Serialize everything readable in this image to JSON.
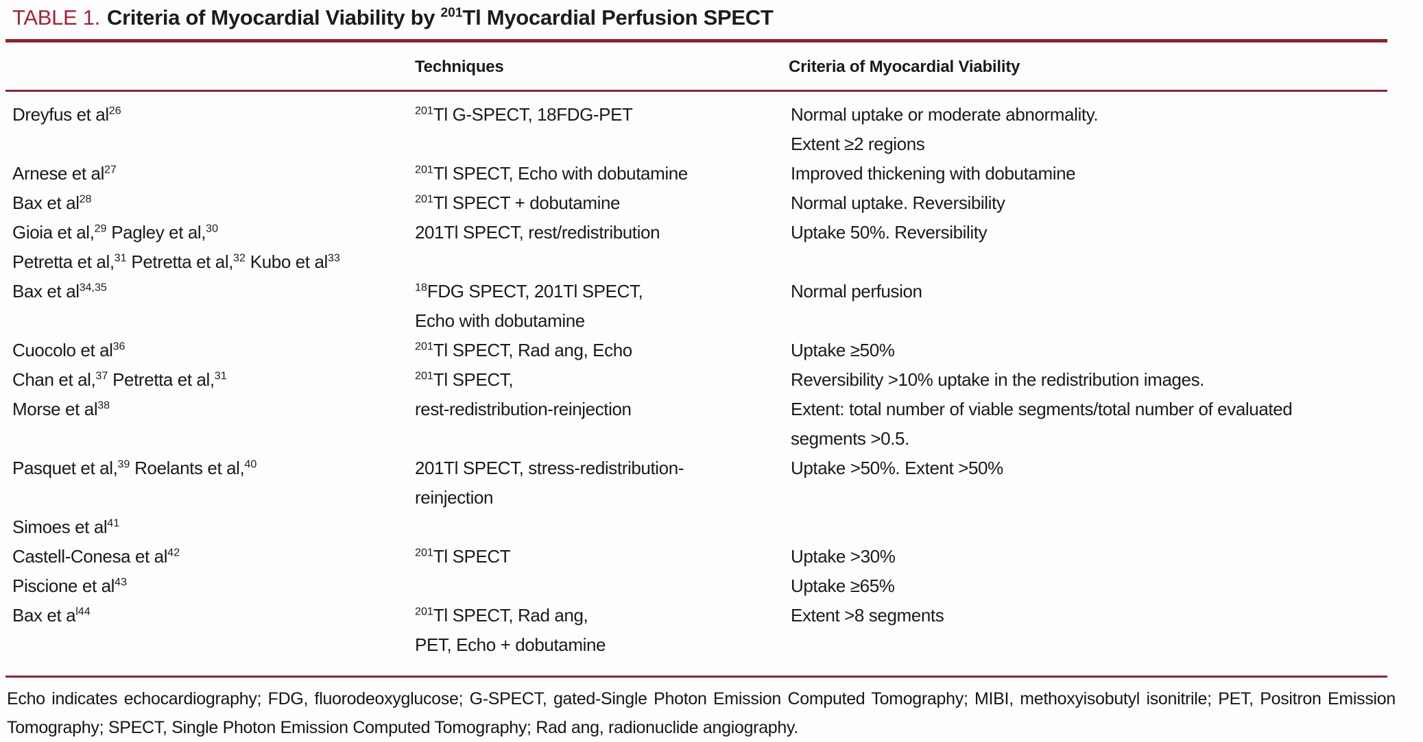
{
  "title": {
    "label": "TABLE 1.",
    "text": "Criteria of Myocardial Viability by ^{201}Tl Myocardial Perfusion SPECT"
  },
  "columns": {
    "techniques": "Techniques",
    "criteria": "Criteria of Myocardial Viability"
  },
  "rows": [
    {
      "authors": [
        "Dreyfus et al^{26}"
      ],
      "techniques": [
        "^{201}Tl G-SPECT, 18FDG-PET"
      ],
      "criteria": [
        "Normal uptake or moderate abnormality.",
        "Extent ≥2 regions"
      ]
    },
    {
      "authors": [
        "Arnese et al^{27}"
      ],
      "techniques": [
        "^{201}Tl SPECT, Echo with dobutamine"
      ],
      "criteria": [
        "Improved thickening with dobutamine"
      ]
    },
    {
      "authors": [
        "Bax et al^{28}"
      ],
      "techniques": [
        "^{201}Tl SPECT + dobutamine"
      ],
      "criteria": [
        "Normal uptake. Reversibility"
      ]
    },
    {
      "authors": [
        "Gioia et al,^{29} Pagley et al,^{30}",
        "Petretta et al,^{31} Petretta et al,^{32} Kubo et al^{33}"
      ],
      "techniques": [
        "201Tl SPECT, rest/redistribution"
      ],
      "criteria": [
        "Uptake 50%. Reversibility"
      ]
    },
    {
      "authors": [
        "Bax et al^{34,35}"
      ],
      "techniques": [
        "^{18}FDG SPECT, 201Tl SPECT,",
        "Echo with dobutamine"
      ],
      "criteria": [
        "Normal perfusion"
      ]
    },
    {
      "authors": [
        "Cuocolo et al^{36}"
      ],
      "techniques": [
        "^{201}Tl SPECT, Rad ang, Echo"
      ],
      "criteria": [
        "Uptake ≥50%"
      ]
    },
    {
      "authors": [
        "Chan et al,^{37} Petretta et al,^{31}",
        "Morse et al^{38}"
      ],
      "techniques": [
        "^{201}Tl SPECT,",
        "rest-redistribution-reinjection"
      ],
      "criteria": [
        "Reversibility >10% uptake in the redistribution images.",
        "Extent: total number of viable segments/total number of evaluated",
        "segments >0.5."
      ]
    },
    {
      "authors": [
        "Pasquet et al,^{39} Roelants et al,^{40}",
        "",
        "Simoes et al^{41}"
      ],
      "techniques": [
        "201Tl SPECT, stress-redistribution-",
        "reinjection"
      ],
      "criteria": [
        "Uptake >50%. Extent >50%"
      ]
    },
    {
      "authors": [
        "Castell-Conesa et al^{42}",
        "Piscione et al^{43}"
      ],
      "techniques": [
        "^{201}Tl SPECT"
      ],
      "criteria": [
        "Uptake >30%",
        "Uptake ≥65%"
      ]
    },
    {
      "authors": [
        "Bax et a^{l44}"
      ],
      "techniques": [
        "^{201}Tl SPECT, Rad ang,",
        "PET, Echo + dobutamine"
      ],
      "criteria": [
        "Extent >8 segments"
      ]
    }
  ],
  "footnote": "Echo indicates echocardiography; FDG, fluorodeoxyglucose; G-SPECT, gated-Single Photon Emission Computed Tomography; MIBI, methoxyisobutyl isonitrile; PET, Positron Emission Tomography; SPECT, Single Photon Emission Computed Tomography; Rad ang, radionuclide angiography.",
  "colors": {
    "accent_red": "#a02339",
    "rule_maroon": "#882633",
    "text": "#1a1a1a"
  }
}
